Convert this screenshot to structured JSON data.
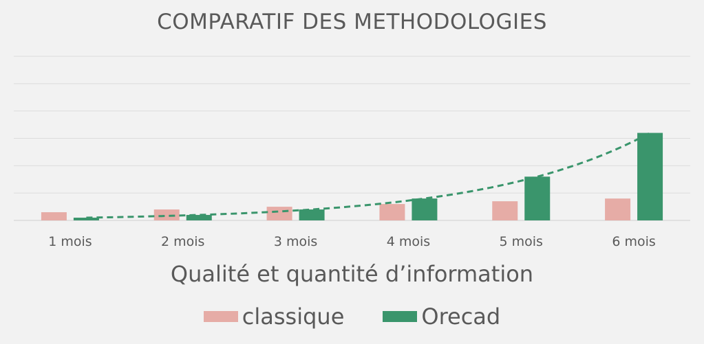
{
  "chart_data": {
    "type": "bar",
    "title": "COMPARATIF DES METHODOLOGIES",
    "xlabel": "Qualité et quantité d’information",
    "ylabel": "",
    "categories": [
      "1 mois",
      "2 mois",
      "3 mois",
      "4 mois",
      "5 mois",
      "6 mois"
    ],
    "ylim": [
      0,
      12
    ],
    "grid": true,
    "legend_position": "bottom",
    "series": [
      {
        "name": "classique",
        "values": [
          0.6,
          0.8,
          1.0,
          1.2,
          1.4,
          1.6
        ],
        "color": "#e6aca6"
      },
      {
        "name": "Orecad",
        "values": [
          0.2,
          0.4,
          0.8,
          1.6,
          3.2,
          6.4
        ],
        "color": "#3a956c"
      }
    ],
    "trendline": {
      "series": "Orecad",
      "kind": "exponential",
      "style": "dashed",
      "color": "#3a956c"
    }
  }
}
